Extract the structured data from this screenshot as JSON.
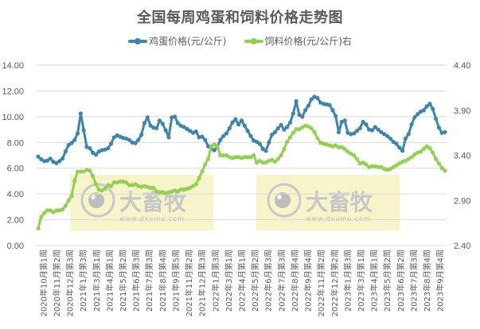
{
  "chart_data": {
    "type": "line",
    "title": "全国每周鸡蛋和饲料价格走势图",
    "legend_position": "top",
    "grid": true,
    "xlabel": "",
    "ylabel": "鸡蛋价格(元/公斤)",
    "ylabel_right": "饲料价格(元/公斤)",
    "ylim": [
      0,
      14
    ],
    "ylim_right": [
      2.4,
      4.4
    ],
    "yticks": [
      "0.00",
      "2.00",
      "4.00",
      "6.00",
      "8.00",
      "10.00",
      "12.00",
      "14.00"
    ],
    "yticks_right": [
      "2.40",
      "2.90",
      "3.40",
      "3.90",
      "4.40"
    ],
    "x_tick_labels": [
      "2020年10月第1周",
      "2020年11月第2周",
      "2020年12月第3周",
      "2021年1月第3周",
      "2021年3月第1周",
      "2021年4月第1周",
      "2021年5月第2周",
      "2021年6月第3周",
      "2021年7月第3周",
      "2021年8月第4周",
      "2021年9月第5周",
      "2021年11月第2周",
      "2021年12月第3周",
      "2022年1月第3周",
      "2022年3月第1周",
      "2022年4月第1周",
      "2022年5月第2周",
      "2022年6月第3周",
      "2022年7月第3周",
      "2022年8月第4周",
      "2022年9月第4周",
      "2022年11月第2周",
      "2022年12月第2周",
      "2023年1月第3周",
      "2023年3月第1周",
      "2023年4月第1周",
      "2023年5月第2周",
      "2023年6月第2周",
      "2023年7月第3周",
      "2023年8月第4周",
      "2023年9月第4周"
    ],
    "series": [
      {
        "name": "鸡蛋价格(元/公斤)",
        "axis": "left",
        "color": "#3d85b0",
        "values": [
          6.9,
          6.7,
          6.55,
          6.6,
          6.75,
          6.5,
          6.4,
          6.55,
          6.75,
          7.3,
          7.8,
          7.95,
          8.2,
          8.7,
          10.25,
          8.95,
          7.65,
          7.55,
          7.2,
          7.05,
          7.3,
          7.4,
          7.45,
          7.55,
          7.9,
          8.4,
          8.55,
          8.45,
          8.35,
          8.3,
          8.2,
          8.0,
          7.95,
          8.2,
          8.6,
          9.5,
          9.95,
          9.3,
          9.15,
          9.1,
          9.7,
          9.45,
          8.95,
          8.4,
          9.95,
          10.0,
          9.5,
          9.3,
          9.2,
          9.05,
          8.9,
          8.75,
          8.85,
          8.4,
          8.45,
          8.2,
          7.7,
          7.5,
          7.4,
          7.65,
          8.2,
          8.5,
          8.7,
          9.1,
          9.55,
          9.8,
          9.4,
          9.7,
          9.3,
          8.9,
          8.5,
          8.15,
          8.05,
          7.9,
          7.5,
          7.35,
          8.0,
          8.6,
          8.8,
          9.1,
          9.35,
          9.0,
          9.2,
          9.55,
          10.25,
          11.2,
          10.15,
          10.0,
          10.5,
          10.85,
          11.35,
          11.55,
          11.45,
          11.1,
          11.0,
          10.95,
          10.9,
          10.5,
          10.05,
          8.8,
          9.6,
          9.7,
          8.75,
          8.65,
          8.7,
          8.9,
          9.1,
          9.6,
          9.4,
          9.0,
          8.95,
          9.2,
          9.0,
          8.8,
          8.65,
          8.5,
          8.3,
          8.05,
          7.9,
          7.6,
          7.35,
          8.3,
          8.65,
          9.4,
          9.95,
          10.2,
          10.4,
          10.5,
          10.8,
          11.0,
          10.6,
          9.85,
          9.15,
          8.75,
          8.8
        ]
      },
      {
        "name": "饲料价格(元/公斤)右",
        "axis": "right",
        "color": "#92d050",
        "values": [
          2.59,
          2.72,
          2.76,
          2.79,
          2.79,
          2.77,
          2.79,
          2.79,
          2.8,
          2.84,
          2.9,
          2.95,
          3.12,
          3.22,
          3.22,
          3.22,
          3.24,
          3.23,
          3.17,
          3.08,
          3.02,
          3.01,
          3.03,
          3.07,
          3.06,
          3.1,
          3.1,
          3.11,
          3.11,
          3.1,
          3.07,
          3.07,
          3.08,
          3.06,
          3.05,
          3.06,
          3.05,
          3.04,
          3.04,
          3.0,
          2.99,
          2.99,
          2.98,
          2.99,
          3.0,
          3.01,
          3.0,
          3.02,
          3.02,
          3.03,
          3.04,
          3.06,
          3.08,
          3.15,
          3.22,
          3.3,
          3.36,
          3.5,
          3.52,
          3.5,
          3.4,
          3.4,
          3.4,
          3.38,
          3.37,
          3.38,
          3.38,
          3.37,
          3.38,
          3.38,
          3.38,
          3.4,
          3.32,
          3.34,
          3.32,
          3.32,
          3.34,
          3.35,
          3.33,
          3.36,
          3.4,
          3.47,
          3.55,
          3.6,
          3.65,
          3.69,
          3.69,
          3.71,
          3.73,
          3.72,
          3.7,
          3.66,
          3.59,
          3.54,
          3.53,
          3.52,
          3.51,
          3.5,
          3.51,
          3.49,
          3.49,
          3.47,
          3.44,
          3.42,
          3.4,
          3.36,
          3.31,
          3.32,
          3.3,
          3.27,
          3.28,
          3.28,
          3.27,
          3.27,
          3.25,
          3.24,
          3.25,
          3.27,
          3.29,
          3.31,
          3.33,
          3.34,
          3.36,
          3.38,
          3.41,
          3.43,
          3.44,
          3.47,
          3.5,
          3.48,
          3.43,
          3.36,
          3.31,
          3.26,
          3.23
        ]
      }
    ],
    "annotations": [
      "大畜牧 www.dxumu.com 水印 (x2)"
    ]
  },
  "title": "全国每周鸡蛋和饲料价格走势图",
  "legend": [
    {
      "label": "鸡蛋价格(元/公斤)",
      "color": "#3d85b0"
    },
    {
      "label": "饲料价格(元/公斤)右",
      "color": "#92d050"
    }
  ],
  "watermark": {
    "brand": "大畜牧",
    "url": "www.dxumu.com"
  }
}
